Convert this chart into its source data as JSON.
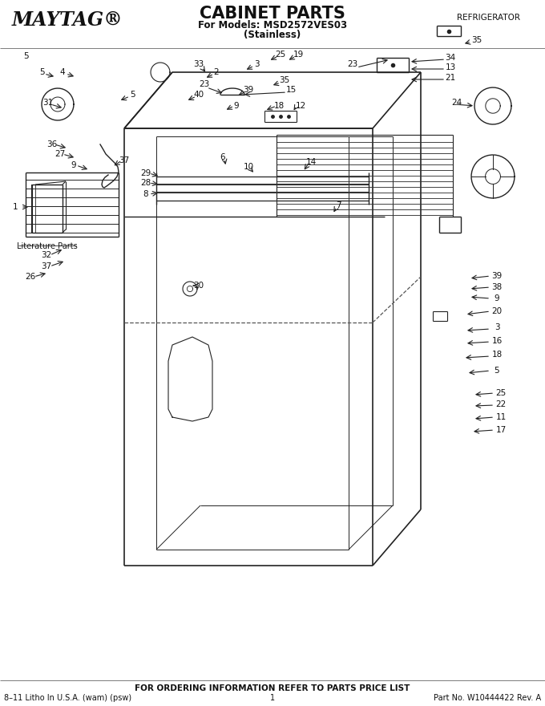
{
  "title": "CABINET PARTS",
  "subtitle1": "For Models: MSD2572VES03",
  "subtitle2": "(Stainless)",
  "brand": "MAYTAG®",
  "type_label": "REFRIGERATOR",
  "footer_center": "FOR ORDERING INFORMATION REFER TO PARTS PRICE LIST",
  "footer_left": "8–11 Litho In U.S.A. (wam) (psw)",
  "footer_mid": "1",
  "footer_right": "Part No. W10444422 Rev. A",
  "bg_color": "#ffffff",
  "line_color": "#222222",
  "text_color": "#111111"
}
